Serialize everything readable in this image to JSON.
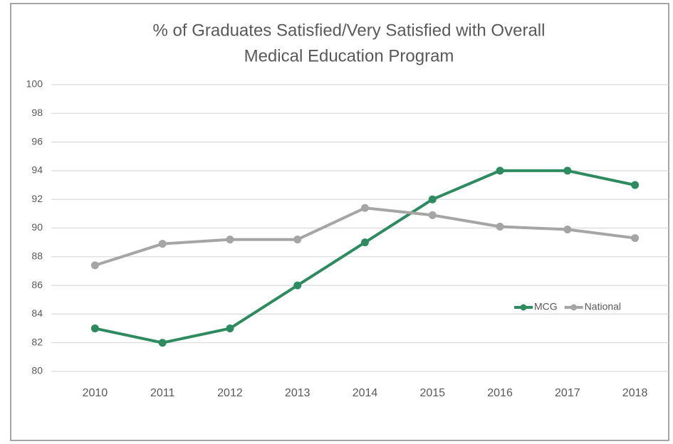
{
  "chart_data": {
    "type": "line",
    "title": [
      "% of Graduates Satisfied/Very Satisfied with Overall",
      "Medical Education Program"
    ],
    "categories": [
      "2010",
      "2011",
      "2012",
      "2013",
      "2014",
      "2015",
      "2016",
      "2017",
      "2018"
    ],
    "series": [
      {
        "name": "MCG",
        "color": "#2e8a5f",
        "values": [
          83,
          82,
          83,
          86,
          89,
          92,
          94,
          94,
          93
        ]
      },
      {
        "name": "National",
        "color": "#a5a5a5",
        "values": [
          87.4,
          88.9,
          89.2,
          89.2,
          91.4,
          90.9,
          90.1,
          89.9,
          89.3
        ]
      }
    ],
    "ylim": [
      80,
      100
    ],
    "yticks": [
      80,
      82,
      84,
      86,
      88,
      90,
      92,
      94,
      96,
      98,
      100
    ],
    "grid": true,
    "legend": "right"
  }
}
